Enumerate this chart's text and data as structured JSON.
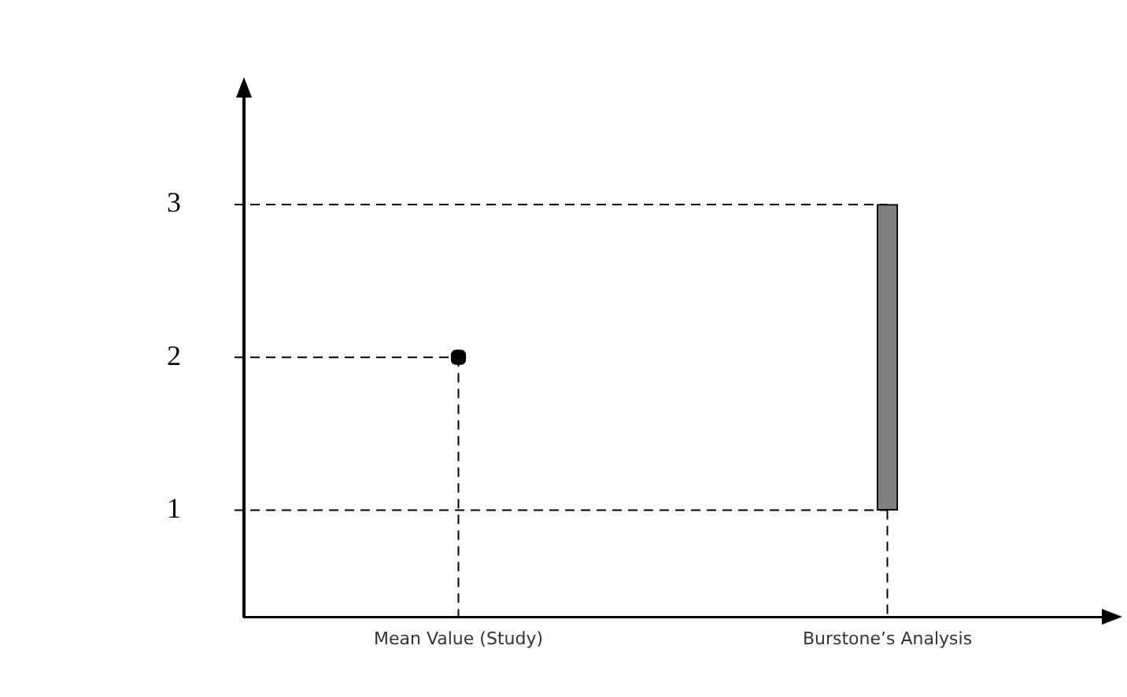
{
  "chart_data": {
    "type": "bar",
    "categories": [
      "Mean Value (Study)",
      "Burstone’s Analysis"
    ],
    "series": [
      {
        "type": "scatter",
        "color": "#000000",
        "values": [
          2,
          null
        ]
      },
      {
        "color": "#808080",
        "base": [
          null,
          1
        ],
        "values": [
          null,
          2
        ]
      }
    ],
    "ref_lines": [
      {
        "axis": "y",
        "value": 3,
        "line_style": "dashed",
        "color": "#000000"
      },
      {
        "axis": "y",
        "value": 2,
        "line_style": "dashed",
        "color": "#000000"
      },
      {
        "axis": "y",
        "value": 1,
        "line_style": "dashed",
        "color": "#000000"
      }
    ],
    "ylim": [
      0.3,
      3.7
    ],
    "yticks": [
      1,
      2,
      3
    ],
    "grid": false,
    "legend": false,
    "marker": "square",
    "line_style": "dashed"
  }
}
